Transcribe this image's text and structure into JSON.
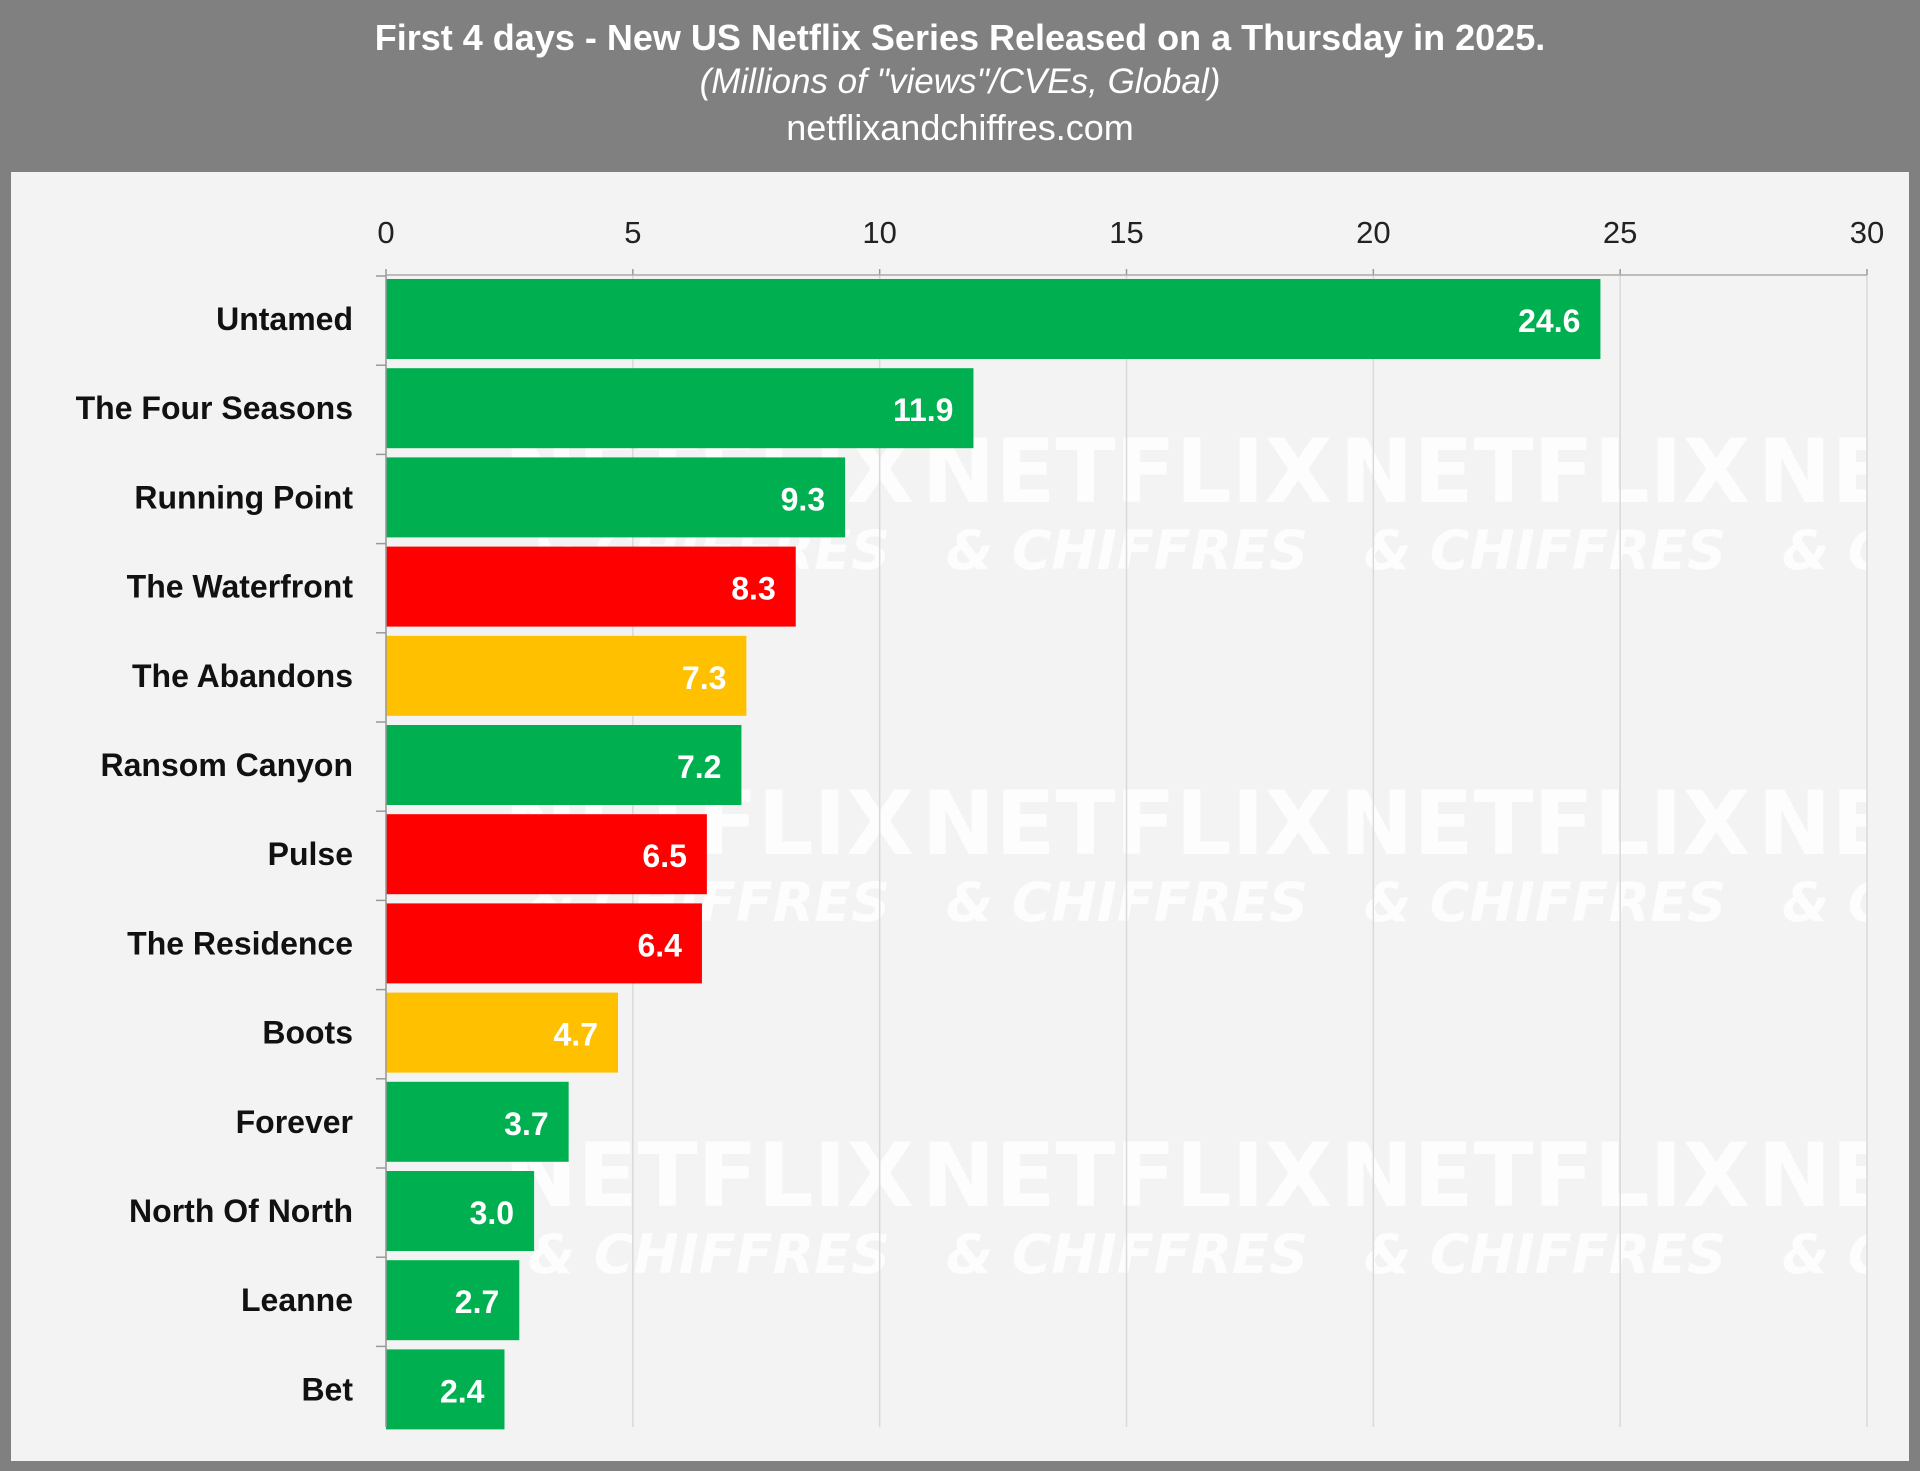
{
  "header": {
    "title": "First 4 days - New US Netflix Series Released on a Thursday in 2025.",
    "subtitle": "(Millions of \"views\"/CVEs, Global)",
    "source": "netflixandchiffres.com"
  },
  "watermark": {
    "line1": "NETFLIX",
    "line2": "& CHIFFRES"
  },
  "colors": {
    "background": "#808080",
    "panel": "#f3f3f3",
    "green": "#00b050",
    "red": "#ff0000",
    "yellow": "#ffc000",
    "gridline": "#d9d9d9"
  },
  "chart_data": {
    "type": "bar",
    "orientation": "horizontal",
    "title": "First 4 days - New US Netflix Series Released on a Thursday in 2025.",
    "subtitle": "(Millions of \"views\"/CVEs, Global)",
    "xlabel": "",
    "ylabel": "",
    "xlim": [
      0,
      30
    ],
    "xticks": [
      0,
      5,
      10,
      15,
      20,
      25,
      30
    ],
    "xtick_labels": [
      "0",
      "5",
      "10",
      "15",
      "20",
      "25",
      "30"
    ],
    "grid": true,
    "axis_position": "top",
    "categories": [
      "Untamed",
      "The Four Seasons",
      "Running Point",
      "The Waterfront",
      "The Abandons",
      "Ransom Canyon",
      "Pulse",
      "The Residence",
      "Boots",
      "Forever",
      "North Of North",
      "Leanne",
      "Bet"
    ],
    "values": [
      24.6,
      11.9,
      9.3,
      8.3,
      7.3,
      7.2,
      6.5,
      6.4,
      4.7,
      3.7,
      3.0,
      2.7,
      2.4
    ],
    "value_labels": [
      "24.6",
      "11.9",
      "9.3",
      "8.3",
      "7.3",
      "7.2",
      "6.5",
      "6.4",
      "4.7",
      "3.7",
      "3.0",
      "2.7",
      "2.4"
    ],
    "bar_colors": [
      "#00b050",
      "#00b050",
      "#00b050",
      "#ff0000",
      "#ffc000",
      "#00b050",
      "#ff0000",
      "#ff0000",
      "#ffc000",
      "#00b050",
      "#00b050",
      "#00b050",
      "#00b050"
    ]
  }
}
